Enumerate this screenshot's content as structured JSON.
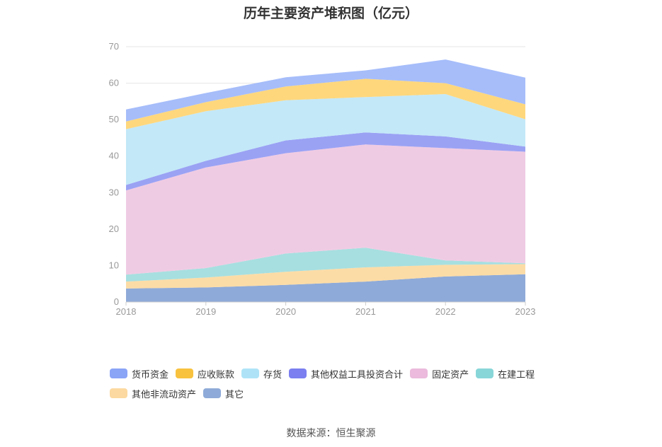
{
  "chart_data": {
    "type": "area",
    "stacked": true,
    "title": "历年主要资产堆积图（亿元）",
    "x": [
      "2018",
      "2019",
      "2020",
      "2021",
      "2022",
      "2023"
    ],
    "ylim": [
      0,
      70
    ],
    "yticks": [
      0,
      10,
      20,
      30,
      40,
      50,
      60,
      70
    ],
    "grid": true,
    "legend_position": "bottom",
    "series": [
      {
        "name": "其它",
        "color": "#8eaad8",
        "values": [
          3.7,
          4.0,
          4.7,
          5.6,
          7.0,
          7.6
        ]
      },
      {
        "name": "其他非流动资产",
        "color": "#fcdca6",
        "values": [
          1.9,
          2.7,
          3.6,
          3.9,
          3.2,
          2.8
        ]
      },
      {
        "name": "在建工程",
        "color": "#a7dfe0",
        "values": [
          1.9,
          2.6,
          5.0,
          5.4,
          1.2,
          0.2
        ]
      },
      {
        "name": "固定资产",
        "color": "#efcbe3",
        "values": [
          23.1,
          27.6,
          27.5,
          28.3,
          30.8,
          30.6
        ]
      },
      {
        "name": "其他权益工具投资合计",
        "color": "#9aa2f4",
        "values": [
          1.5,
          1.8,
          3.5,
          3.3,
          3.2,
          1.4
        ]
      },
      {
        "name": "存货",
        "color": "#c3e8f8",
        "values": [
          15.3,
          13.6,
          11.0,
          9.7,
          11.6,
          7.5
        ]
      },
      {
        "name": "应收账款",
        "color": "#fed77d",
        "values": [
          2.1,
          2.5,
          3.8,
          5.0,
          3.0,
          4.1
        ]
      },
      {
        "name": "货币资金",
        "color": "#a6bdfa",
        "values": [
          3.3,
          2.5,
          2.5,
          2.3,
          6.5,
          7.3
        ]
      }
    ]
  },
  "legend": [
    {
      "label": "货币资金",
      "color": "#8aa4f6"
    },
    {
      "label": "应收账款",
      "color": "#f8c23f"
    },
    {
      "label": "存货",
      "color": "#aee3f7"
    },
    {
      "label": "其他权益工具投资合计",
      "color": "#7b7ff0"
    },
    {
      "label": "固定资产",
      "color": "#ebbadc"
    },
    {
      "label": "在建工程",
      "color": "#88d6d8"
    },
    {
      "label": "其他非流动资产",
      "color": "#fcd9a0"
    },
    {
      "label": "其它",
      "color": "#8eaad8"
    }
  ],
  "source": "数据来源：恒生聚源"
}
